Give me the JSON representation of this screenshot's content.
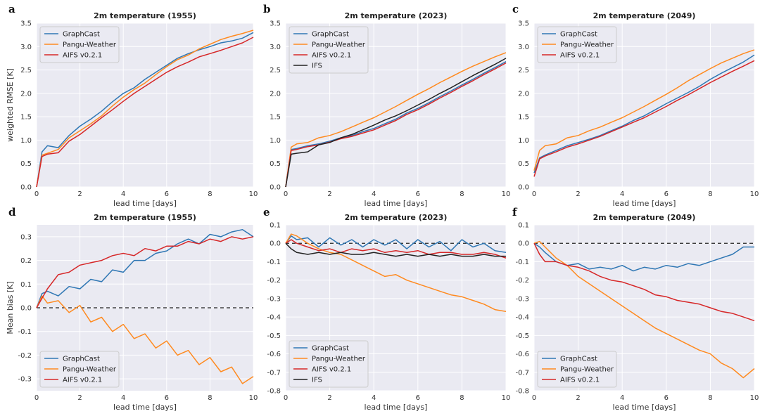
{
  "chart_data": [
    {
      "panel_label": "a",
      "type": "line",
      "title": "2m temperature (1955)",
      "xlabel": "lead time [days]",
      "ylabel": "weighted RMSE [K]",
      "xlim": [
        0,
        10
      ],
      "ylim": [
        0,
        3.5
      ],
      "xticks": [
        0,
        2,
        4,
        6,
        8,
        10
      ],
      "yticks": [
        0.0,
        0.5,
        1.0,
        1.5,
        2.0,
        2.5,
        3.0,
        3.5
      ],
      "x": [
        0,
        0.25,
        0.5,
        1,
        1.5,
        2,
        2.5,
        3,
        3.5,
        4,
        4.5,
        5,
        5.5,
        6,
        6.5,
        7,
        7.5,
        8,
        8.5,
        9,
        9.5,
        10
      ],
      "series": [
        {
          "name": "GraphCast",
          "values": [
            0.0,
            0.75,
            0.88,
            0.84,
            1.1,
            1.3,
            1.45,
            1.62,
            1.82,
            2.0,
            2.12,
            2.3,
            2.45,
            2.6,
            2.75,
            2.85,
            2.93,
            3.0,
            3.08,
            3.12,
            3.18,
            3.3
          ]
        },
        {
          "name": "Pangu-Weather",
          "values": [
            0.0,
            0.68,
            0.72,
            0.8,
            1.05,
            1.2,
            1.35,
            1.52,
            1.73,
            1.92,
            2.08,
            2.22,
            2.4,
            2.57,
            2.72,
            2.82,
            2.95,
            3.05,
            3.15,
            3.22,
            3.28,
            3.35
          ]
        },
        {
          "name": "AIFS v0.2.1",
          "values": [
            0.0,
            0.65,
            0.7,
            0.73,
            0.98,
            1.12,
            1.3,
            1.48,
            1.65,
            1.83,
            2.0,
            2.15,
            2.3,
            2.45,
            2.57,
            2.67,
            2.78,
            2.85,
            2.92,
            3.0,
            3.08,
            3.2
          ]
        }
      ],
      "legend": "top-left"
    },
    {
      "panel_label": "b",
      "type": "line",
      "title": "2m temperature (2023)",
      "xlabel": "lead time [days]",
      "ylabel": "",
      "xlim": [
        0,
        10
      ],
      "ylim": [
        0,
        3.5
      ],
      "xticks": [
        0,
        2,
        4,
        6,
        8,
        10
      ],
      "yticks": [
        0.0,
        0.5,
        1.0,
        1.5,
        2.0,
        2.5,
        3.0,
        3.5
      ],
      "x": [
        0,
        0.25,
        0.5,
        1,
        1.5,
        2,
        2.5,
        3,
        3.5,
        4,
        4.5,
        5,
        5.5,
        6,
        6.5,
        7,
        7.5,
        8,
        8.5,
        9,
        9.5,
        10
      ],
      "series": [
        {
          "name": "GraphCast",
          "values": [
            0.0,
            0.8,
            0.82,
            0.88,
            0.92,
            0.98,
            1.05,
            1.1,
            1.18,
            1.25,
            1.35,
            1.45,
            1.58,
            1.68,
            1.8,
            1.93,
            2.05,
            2.18,
            2.3,
            2.43,
            2.55,
            2.68
          ]
        },
        {
          "name": "Pangu-Weather",
          "values": [
            0.0,
            0.85,
            0.92,
            0.95,
            1.05,
            1.1,
            1.18,
            1.28,
            1.38,
            1.48,
            1.6,
            1.72,
            1.85,
            1.98,
            2.1,
            2.23,
            2.35,
            2.47,
            2.58,
            2.68,
            2.78,
            2.87
          ]
        },
        {
          "name": "AIFS v0.2.1",
          "values": [
            0.0,
            0.78,
            0.8,
            0.86,
            0.9,
            0.96,
            1.03,
            1.08,
            1.15,
            1.22,
            1.32,
            1.42,
            1.55,
            1.65,
            1.77,
            1.9,
            2.02,
            2.15,
            2.27,
            2.4,
            2.52,
            2.65
          ]
        },
        {
          "name": "IFS",
          "values": [
            0.0,
            0.7,
            0.72,
            0.75,
            0.9,
            0.95,
            1.05,
            1.12,
            1.22,
            1.32,
            1.43,
            1.52,
            1.63,
            1.75,
            1.87,
            2.0,
            2.12,
            2.25,
            2.38,
            2.5,
            2.62,
            2.75
          ]
        }
      ],
      "legend": "top-left"
    },
    {
      "panel_label": "c",
      "type": "line",
      "title": "2m temperature (2049)",
      "xlabel": "lead time [days]",
      "ylabel": "",
      "xlim": [
        0,
        10
      ],
      "ylim": [
        0,
        3.5
      ],
      "xticks": [
        0,
        2,
        4,
        6,
        8,
        10
      ],
      "yticks": [
        0.0,
        0.5,
        1.0,
        1.5,
        2.0,
        2.5,
        3.0,
        3.5
      ],
      "x": [
        0,
        0.25,
        0.5,
        1,
        1.5,
        2,
        2.5,
        3,
        3.5,
        4,
        4.5,
        5,
        5.5,
        6,
        6.5,
        7,
        7.5,
        8,
        8.5,
        9,
        9.5,
        10
      ],
      "series": [
        {
          "name": "GraphCast",
          "values": [
            0.3,
            0.62,
            0.68,
            0.78,
            0.88,
            0.95,
            1.02,
            1.1,
            1.2,
            1.3,
            1.42,
            1.52,
            1.65,
            1.78,
            1.9,
            2.02,
            2.15,
            2.3,
            2.43,
            2.55,
            2.67,
            2.82
          ]
        },
        {
          "name": "Pangu-Weather",
          "values": [
            0.35,
            0.78,
            0.88,
            0.92,
            1.05,
            1.1,
            1.2,
            1.28,
            1.38,
            1.48,
            1.6,
            1.72,
            1.85,
            1.98,
            2.12,
            2.27,
            2.4,
            2.53,
            2.65,
            2.75,
            2.85,
            2.93
          ]
        },
        {
          "name": "AIFS v0.2.1",
          "values": [
            0.22,
            0.6,
            0.66,
            0.75,
            0.85,
            0.92,
            1.0,
            1.08,
            1.18,
            1.28,
            1.38,
            1.48,
            1.6,
            1.72,
            1.85,
            1.97,
            2.1,
            2.23,
            2.35,
            2.47,
            2.58,
            2.7
          ]
        }
      ],
      "legend": "top-left"
    },
    {
      "panel_label": "d",
      "type": "line",
      "title": "2m temperature (1955)",
      "xlabel": "lead time [days]",
      "ylabel": "Mean bias [K]",
      "xlim": [
        0,
        10
      ],
      "ylim": [
        -0.35,
        0.35
      ],
      "xticks": [
        0,
        2,
        4,
        6,
        8,
        10
      ],
      "yticks": [
        -0.3,
        -0.2,
        -0.1,
        0.0,
        0.1,
        0.2,
        0.3
      ],
      "x": [
        0,
        0.25,
        0.5,
        1,
        1.5,
        2,
        2.5,
        3,
        3.5,
        4,
        4.5,
        5,
        5.5,
        6,
        6.5,
        7,
        7.5,
        8,
        8.5,
        9,
        9.5,
        10
      ],
      "series": [
        {
          "name": "GraphCast",
          "values": [
            0.0,
            0.06,
            0.07,
            0.05,
            0.09,
            0.08,
            0.12,
            0.11,
            0.16,
            0.15,
            0.2,
            0.2,
            0.23,
            0.24,
            0.27,
            0.29,
            0.27,
            0.31,
            0.3,
            0.32,
            0.33,
            0.3
          ]
        },
        {
          "name": "Pangu-Weather",
          "values": [
            0.0,
            0.05,
            0.02,
            0.03,
            -0.02,
            0.01,
            -0.06,
            -0.04,
            -0.1,
            -0.07,
            -0.13,
            -0.11,
            -0.17,
            -0.14,
            -0.2,
            -0.18,
            -0.24,
            -0.21,
            -0.27,
            -0.25,
            -0.32,
            -0.29
          ]
        },
        {
          "name": "AIFS v0.2.1",
          "values": [
            0.0,
            0.04,
            0.08,
            0.14,
            0.15,
            0.18,
            0.19,
            0.2,
            0.22,
            0.23,
            0.22,
            0.25,
            0.24,
            0.26,
            0.26,
            0.28,
            0.27,
            0.29,
            0.28,
            0.3,
            0.29,
            0.3
          ]
        }
      ],
      "reference_line": 0,
      "legend": "bottom-left"
    },
    {
      "panel_label": "e",
      "type": "line",
      "title": "2m temperature (2023)",
      "xlabel": "lead time [days]",
      "ylabel": "",
      "xlim": [
        0,
        10
      ],
      "ylim": [
        -0.8,
        0.1
      ],
      "xticks": [
        0,
        2,
        4,
        6,
        8,
        10
      ],
      "yticks": [
        -0.8,
        -0.7,
        -0.6,
        -0.5,
        -0.4,
        -0.3,
        -0.2,
        -0.1,
        0.0,
        0.1
      ],
      "x": [
        0,
        0.25,
        0.5,
        1,
        1.5,
        2,
        2.5,
        3,
        3.5,
        4,
        4.5,
        5,
        5.5,
        6,
        6.5,
        7,
        7.5,
        8,
        8.5,
        9,
        9.5,
        10
      ],
      "series": [
        {
          "name": "GraphCast",
          "values": [
            0.0,
            0.04,
            0.02,
            0.03,
            -0.02,
            0.03,
            -0.01,
            0.02,
            -0.02,
            0.02,
            -0.01,
            0.02,
            -0.03,
            0.02,
            -0.02,
            0.01,
            -0.04,
            0.02,
            -0.02,
            0.0,
            -0.04,
            -0.05
          ]
        },
        {
          "name": "Pangu-Weather",
          "values": [
            0.0,
            0.05,
            0.04,
            0.0,
            -0.03,
            -0.05,
            -0.06,
            -0.09,
            -0.12,
            -0.15,
            -0.18,
            -0.17,
            -0.2,
            -0.22,
            -0.24,
            -0.26,
            -0.28,
            -0.29,
            -0.31,
            -0.33,
            -0.36,
            -0.37
          ]
        },
        {
          "name": "AIFS v0.2.1",
          "values": [
            0.0,
            0.02,
            0.0,
            -0.02,
            -0.04,
            -0.03,
            -0.05,
            -0.03,
            -0.04,
            -0.03,
            -0.05,
            -0.04,
            -0.05,
            -0.04,
            -0.06,
            -0.05,
            -0.05,
            -0.06,
            -0.06,
            -0.05,
            -0.06,
            -0.08
          ]
        },
        {
          "name": "IFS",
          "values": [
            0.0,
            -0.03,
            -0.05,
            -0.06,
            -0.05,
            -0.06,
            -0.05,
            -0.06,
            -0.06,
            -0.05,
            -0.06,
            -0.07,
            -0.06,
            -0.07,
            -0.06,
            -0.07,
            -0.06,
            -0.07,
            -0.07,
            -0.06,
            -0.07,
            -0.07
          ]
        }
      ],
      "reference_line": 0,
      "legend": "bottom-left"
    },
    {
      "panel_label": "f",
      "type": "line",
      "title": "2m temperature (2049)",
      "xlabel": "lead time [days]",
      "ylabel": "",
      "xlim": [
        0,
        10
      ],
      "ylim": [
        -0.8,
        0.1
      ],
      "xticks": [
        0,
        2,
        4,
        6,
        8,
        10
      ],
      "yticks": [
        -0.8,
        -0.7,
        -0.6,
        -0.5,
        -0.4,
        -0.3,
        -0.2,
        -0.1,
        0.0,
        0.1
      ],
      "x": [
        0,
        0.25,
        0.5,
        1,
        1.5,
        2,
        2.5,
        3,
        3.5,
        4,
        4.5,
        5,
        5.5,
        6,
        6.5,
        7,
        7.5,
        8,
        8.5,
        9,
        9.5,
        10
      ],
      "series": [
        {
          "name": "GraphCast",
          "values": [
            0.0,
            -0.02,
            -0.05,
            -0.1,
            -0.12,
            -0.11,
            -0.14,
            -0.13,
            -0.14,
            -0.12,
            -0.15,
            -0.13,
            -0.14,
            -0.12,
            -0.13,
            -0.11,
            -0.12,
            -0.1,
            -0.08,
            -0.06,
            -0.02,
            -0.02
          ]
        },
        {
          "name": "Pangu-Weather",
          "values": [
            0.0,
            0.01,
            -0.02,
            -0.08,
            -0.12,
            -0.18,
            -0.22,
            -0.26,
            -0.3,
            -0.34,
            -0.38,
            -0.42,
            -0.46,
            -0.49,
            -0.52,
            -0.55,
            -0.58,
            -0.6,
            -0.65,
            -0.68,
            -0.73,
            -0.68
          ]
        },
        {
          "name": "AIFS v0.2.1",
          "values": [
            0.0,
            -0.06,
            -0.1,
            -0.1,
            -0.12,
            -0.13,
            -0.15,
            -0.18,
            -0.2,
            -0.21,
            -0.23,
            -0.25,
            -0.28,
            -0.29,
            -0.31,
            -0.32,
            -0.33,
            -0.35,
            -0.37,
            -0.38,
            -0.4,
            -0.42
          ]
        }
      ],
      "reference_line": 0,
      "legend": "bottom-left"
    }
  ],
  "series_colors": {
    "GraphCast": "#2f77b4",
    "Pangu-Weather": "#ff8a1f",
    "AIFS v0.2.1": "#d62728",
    "IFS": "#222222"
  },
  "reference_line_color": "#222222"
}
